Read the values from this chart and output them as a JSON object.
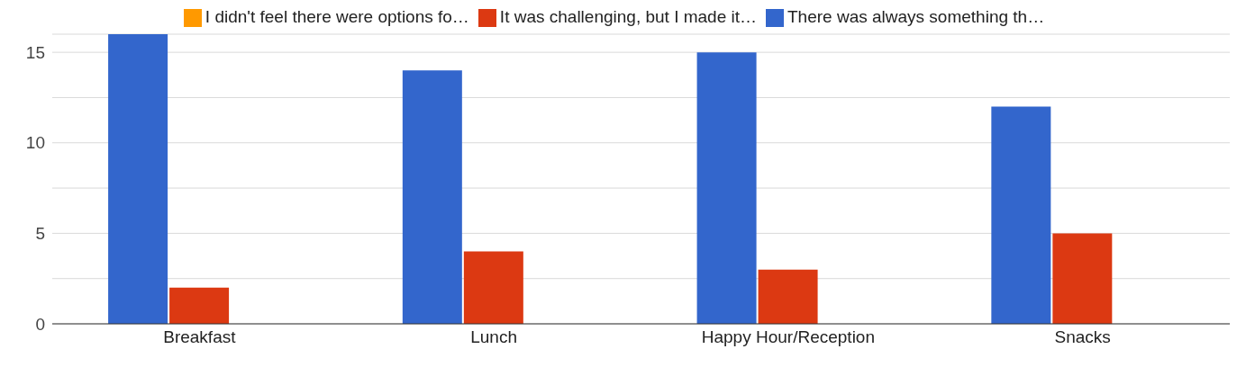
{
  "chart_data": {
    "type": "bar",
    "categories": [
      "Breakfast",
      "Lunch",
      "Happy Hour/Reception",
      "Snacks"
    ],
    "series": [
      {
        "name": "There was always something th…",
        "color": "#3366cc",
        "values": [
          16,
          14,
          15,
          12
        ]
      },
      {
        "name": "It was challenging, but I made it…",
        "color": "#dc3912",
        "values": [
          2,
          4,
          3,
          5
        ]
      },
      {
        "name": "I didn't feel there were options fo…",
        "color": "#ff9900",
        "values": [
          0,
          0,
          0,
          0
        ]
      }
    ],
    "ylim": [
      0,
      16
    ],
    "yticks": [
      0,
      {
        "value": 2.5,
        "label": null
      },
      5,
      {
        "value": 7.5,
        "label": null
      },
      10,
      {
        "value": 12.5,
        "label": null
      },
      15
    ],
    "grid": "y",
    "legend": "top"
  }
}
